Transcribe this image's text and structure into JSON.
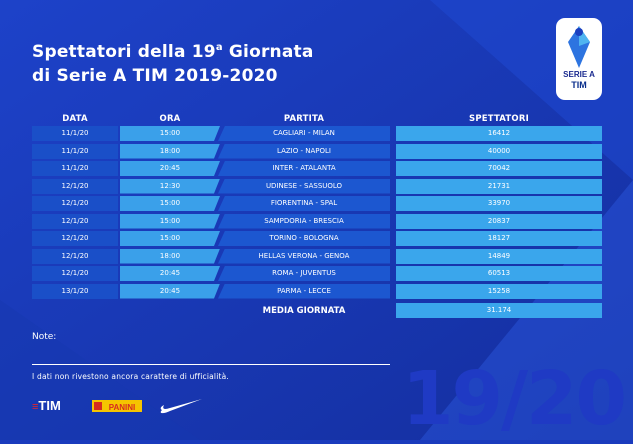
{
  "title": {
    "line1_a": "Spettatori della 19",
    "line1_sup": "a",
    "line1_b": " Giornata",
    "line2": "di Serie A TIM 2019-2020"
  },
  "logo": {
    "line1": "SERIE A",
    "line2": "TIM"
  },
  "headers": {
    "data": "DATA",
    "ora": "ORA",
    "partita": "PARTITA",
    "spettatori": "SPETTATORI"
  },
  "rows": [
    {
      "data": "11/1/20",
      "ora": "15:00",
      "partita": "CAGLIARI - MILAN",
      "spettatori": "16412"
    },
    {
      "data": "11/1/20",
      "ora": "18:00",
      "partita": "LAZIO - NAPOLI",
      "spettatori": "40000"
    },
    {
      "data": "11/1/20",
      "ora": "20:45",
      "partita": "INTER - ATALANTA",
      "spettatori": "70042"
    },
    {
      "data": "12/1/20",
      "ora": "12:30",
      "partita": "UDINESE - SASSUOLO",
      "spettatori": "21731"
    },
    {
      "data": "12/1/20",
      "ora": "15:00",
      "partita": "FIORENTINA - SPAL",
      "spettatori": "33970"
    },
    {
      "data": "12/1/20",
      "ora": "15:00",
      "partita": "SAMPDORIA - BRESCIA",
      "spettatori": "20837"
    },
    {
      "data": "12/1/20",
      "ora": "15:00",
      "partita": "TORINO - BOLOGNA",
      "spettatori": "18127"
    },
    {
      "data": "12/1/20",
      "ora": "18:00",
      "partita": "HELLAS VERONA - GENOA",
      "spettatori": "14849"
    },
    {
      "data": "12/1/20",
      "ora": "20:45",
      "partita": "ROMA - JUVENTUS",
      "spettatori": "60513"
    },
    {
      "data": "13/1/20",
      "ora": "20:45",
      "partita": "PARMA - LECCE",
      "spettatori": "15258"
    }
  ],
  "media": {
    "label": "MEDIA GIORNATA",
    "value": "31.174"
  },
  "note_label": "Note:",
  "disclaimer": "I dati non rivestono ancora carattere di ufficialità.",
  "big_number": "19/20",
  "sponsors": {
    "tim": "TIM",
    "panini": "PANINI"
  },
  "colors": {
    "background": "#1a3bbd",
    "cell_dark": "#1a4fc8",
    "cell_light": "#3aa6ec",
    "tim_red": "#e3262c"
  },
  "icons": [
    "serie-a-logo-icon",
    "tim-logo-icon",
    "panini-logo-icon",
    "nike-swoosh-icon"
  ]
}
